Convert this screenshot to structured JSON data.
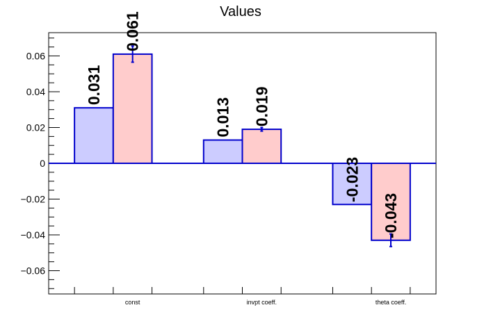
{
  "chart_data": {
    "type": "bar",
    "title": "Values",
    "xlabel": "",
    "ylabel": "",
    "categories": [
      "const",
      "invpt coeff.",
      "theta coeff."
    ],
    "series": [
      {
        "values": [
          0.031,
          0.013,
          -0.023
        ],
        "errors": [
          0.0,
          0.0,
          0.0
        ],
        "labels": [
          "0.031",
          "0.013",
          "-0.023"
        ]
      },
      {
        "values": [
          0.061,
          0.019,
          -0.043
        ],
        "errors": [
          0.0045,
          0.001,
          0.0035
        ],
        "labels": [
          "0.061",
          "0.019",
          "-0.043"
        ]
      }
    ],
    "ylim": [
      -0.073,
      0.073
    ],
    "yticks": [
      "0.06",
      "0.04",
      "0.02",
      "0",
      "−0.02",
      "−0.04",
      "−0.06"
    ],
    "ytick_values": [
      0.06,
      0.04,
      0.02,
      0,
      -0.02,
      -0.04,
      -0.06
    ],
    "grid": false,
    "colors": {
      "series_fill": [
        "#ccccff",
        "#ffcccc"
      ],
      "bar_edge": "#0000cc",
      "zero_line": "#0000cc",
      "axis": "#000000"
    }
  }
}
